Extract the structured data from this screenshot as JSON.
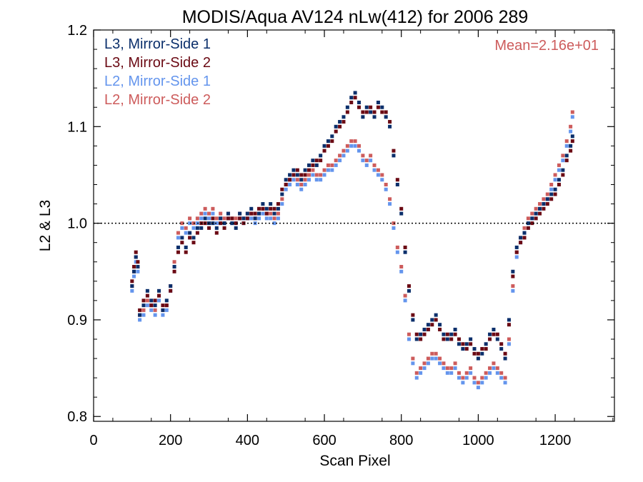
{
  "chart_data": {
    "type": "scatter",
    "title": "MODIS/Aqua AV124 nLw(412) for 2006 289",
    "xlabel": "Scan Pixel",
    "ylabel": "L2 & L3",
    "xlim": [
      0,
      1354
    ],
    "ylim": [
      0.795,
      1.2
    ],
    "x_ticks": [
      0,
      200,
      400,
      600,
      800,
      1000,
      1200
    ],
    "x_tick_labels": [
      "0",
      "200",
      "400",
      "600",
      "800",
      "1000",
      "1200"
    ],
    "y_ticks": [
      0.8,
      0.9,
      1.0,
      1.1,
      1.2
    ],
    "y_tick_labels": [
      "0.8",
      "0.9",
      "1.0",
      "1.1",
      "1.2"
    ],
    "reference_line": 1.0,
    "annotation": "Mean=2.16e+01",
    "annotation_color": "#cd5c5c",
    "legend_position": "top-left",
    "x_sample_points": [
      100,
      105,
      110,
      115,
      120,
      130,
      140,
      150,
      160,
      170,
      180,
      190,
      200,
      210,
      220,
      230,
      240,
      250,
      260,
      270,
      280,
      290,
      300,
      310,
      320,
      330,
      340,
      350,
      360,
      370,
      380,
      390,
      400,
      410,
      420,
      430,
      440,
      450,
      460,
      470,
      480,
      490,
      500,
      510,
      520,
      530,
      540,
      550,
      560,
      570,
      580,
      590,
      600,
      610,
      620,
      630,
      640,
      650,
      660,
      670,
      680,
      690,
      700,
      710,
      720,
      730,
      740,
      750,
      760,
      770,
      780,
      790,
      800,
      810,
      820,
      830,
      840,
      850,
      860,
      870,
      880,
      890,
      900,
      910,
      920,
      930,
      940,
      950,
      960,
      970,
      980,
      990,
      1000,
      1010,
      1020,
      1030,
      1040,
      1050,
      1060,
      1070,
      1080,
      1090,
      1100,
      1110,
      1120,
      1130,
      1140,
      1150,
      1160,
      1170,
      1180,
      1190,
      1200,
      1210,
      1220,
      1230,
      1240,
      1245
    ],
    "series": [
      {
        "name": "L3, Mirror-Side 1",
        "color": "#0b2f6b",
        "values": [
          0.935,
          0.95,
          0.965,
          0.955,
          0.905,
          0.915,
          0.93,
          0.92,
          0.915,
          0.93,
          0.91,
          0.92,
          0.935,
          0.955,
          0.975,
          0.985,
          0.975,
          0.99,
          0.985,
          0.995,
          0.995,
          1.005,
          1.0,
          1.0,
          0.995,
          1.005,
          1.0,
          1.01,
          1.0,
          0.995,
          1.01,
          1.005,
          1.01,
          1.015,
          1.005,
          1.01,
          1.02,
          1.015,
          1.02,
          1.01,
          1.015,
          1.03,
          1.045,
          1.05,
          1.055,
          1.05,
          1.045,
          1.055,
          1.06,
          1.065,
          1.06,
          1.07,
          1.08,
          1.085,
          1.09,
          1.1,
          1.105,
          1.11,
          1.12,
          1.13,
          1.135,
          1.125,
          1.11,
          1.12,
          1.115,
          1.11,
          1.125,
          1.12,
          1.11,
          1.1,
          1.07,
          1.04,
          1.01,
          0.97,
          0.93,
          0.9,
          0.88,
          0.885,
          0.89,
          0.895,
          0.9,
          0.905,
          0.895,
          0.885,
          0.88,
          0.885,
          0.89,
          0.875,
          0.87,
          0.875,
          0.88,
          0.87,
          0.86,
          0.865,
          0.875,
          0.885,
          0.89,
          0.88,
          0.87,
          0.86,
          0.9,
          0.95,
          0.975,
          0.985,
          0.99,
          1.0,
          1.005,
          1.01,
          1.015,
          1.02,
          1.025,
          1.03,
          1.035,
          1.045,
          1.055,
          1.07,
          1.08,
          1.09
        ]
      },
      {
        "name": "L3, Mirror-Side 2",
        "color": "#6b0a14",
        "values": [
          0.94,
          0.955,
          0.97,
          0.96,
          0.91,
          0.92,
          0.925,
          0.915,
          0.92,
          0.925,
          0.915,
          0.915,
          0.93,
          0.95,
          0.97,
          0.98,
          0.97,
          0.985,
          0.98,
          0.99,
          1.0,
          1.0,
          0.995,
          1.005,
          0.99,
          1.0,
          0.995,
          1.005,
          1.005,
          1.0,
          1.005,
          1.0,
          1.005,
          1.01,
          1.01,
          1.015,
          1.015,
          1.01,
          1.015,
          1.015,
          1.02,
          1.035,
          1.04,
          1.045,
          1.05,
          1.055,
          1.05,
          1.05,
          1.055,
          1.06,
          1.065,
          1.065,
          1.075,
          1.08,
          1.085,
          1.095,
          1.1,
          1.105,
          1.115,
          1.125,
          1.13,
          1.12,
          1.115,
          1.115,
          1.12,
          1.115,
          1.12,
          1.115,
          1.115,
          1.105,
          1.075,
          1.045,
          1.015,
          0.975,
          0.935,
          0.905,
          0.885,
          0.88,
          0.885,
          0.89,
          0.895,
          0.9,
          0.89,
          0.88,
          0.885,
          0.88,
          0.885,
          0.88,
          0.875,
          0.87,
          0.875,
          0.865,
          0.865,
          0.87,
          0.87,
          0.88,
          0.885,
          0.885,
          0.875,
          0.865,
          0.895,
          0.945,
          0.97,
          0.98,
          0.985,
          0.995,
          1.0,
          1.005,
          1.01,
          1.015,
          1.02,
          1.025,
          1.03,
          1.04,
          1.05,
          1.065,
          1.075,
          1.085
        ]
      },
      {
        "name": "L2, Mirror-Side 1",
        "color": "#6495ed",
        "values": [
          0.93,
          0.945,
          0.96,
          0.95,
          0.9,
          0.905,
          0.915,
          0.91,
          0.905,
          0.92,
          0.905,
          0.91,
          0.93,
          0.955,
          0.985,
          0.995,
          0.99,
          1.0,
          0.995,
          1.0,
          1.005,
          1.01,
          1.005,
          1.01,
          1.0,
          1.005,
          1.0,
          1.005,
          1.0,
          1.0,
          1.005,
          1.0,
          1.005,
          1.005,
          1.0,
          1.005,
          1.01,
          1.005,
          1.005,
          1.0,
          1.005,
          1.02,
          1.035,
          1.04,
          1.045,
          1.04,
          1.035,
          1.04,
          1.045,
          1.05,
          1.045,
          1.045,
          1.05,
          1.055,
          1.055,
          1.06,
          1.065,
          1.07,
          1.075,
          1.08,
          1.08,
          1.075,
          1.065,
          1.06,
          1.065,
          1.055,
          1.05,
          1.045,
          1.035,
          1.02,
          0.995,
          0.97,
          0.95,
          0.92,
          0.88,
          0.855,
          0.84,
          0.845,
          0.85,
          0.855,
          0.86,
          0.86,
          0.855,
          0.85,
          0.845,
          0.845,
          0.85,
          0.84,
          0.835,
          0.84,
          0.845,
          0.835,
          0.83,
          0.835,
          0.84,
          0.845,
          0.85,
          0.845,
          0.84,
          0.835,
          0.875,
          0.93,
          0.965,
          0.98,
          0.99,
          1.0,
          1.005,
          1.01,
          1.015,
          1.02,
          1.025,
          1.035,
          1.045,
          1.055,
          1.065,
          1.08,
          1.095,
          1.11
        ]
      },
      {
        "name": "L2, Mirror-Side 2",
        "color": "#cd5c5c",
        "values": [
          0.935,
          0.95,
          0.965,
          0.955,
          0.905,
          0.91,
          0.92,
          0.915,
          0.91,
          0.925,
          0.91,
          0.915,
          0.935,
          0.96,
          0.99,
          1.0,
          0.995,
          1.005,
          1.0,
          1.005,
          1.01,
          1.015,
          1.01,
          1.015,
          1.005,
          1.01,
          1.005,
          1.01,
          1.005,
          1.005,
          1.01,
          1.005,
          1.01,
          1.01,
          1.005,
          1.01,
          1.015,
          1.01,
          1.01,
          1.005,
          1.01,
          1.025,
          1.04,
          1.045,
          1.05,
          1.045,
          1.04,
          1.045,
          1.05,
          1.055,
          1.05,
          1.05,
          1.055,
          1.06,
          1.06,
          1.065,
          1.07,
          1.075,
          1.08,
          1.085,
          1.085,
          1.08,
          1.07,
          1.065,
          1.07,
          1.06,
          1.055,
          1.05,
          1.04,
          1.025,
          1.0,
          0.975,
          0.955,
          0.925,
          0.885,
          0.86,
          0.845,
          0.85,
          0.855,
          0.86,
          0.865,
          0.865,
          0.86,
          0.855,
          0.85,
          0.85,
          0.855,
          0.845,
          0.84,
          0.845,
          0.85,
          0.84,
          0.835,
          0.84,
          0.845,
          0.85,
          0.855,
          0.85,
          0.845,
          0.84,
          0.88,
          0.935,
          0.97,
          0.985,
          0.995,
          1.005,
          1.01,
          1.015,
          1.02,
          1.025,
          1.03,
          1.04,
          1.05,
          1.06,
          1.07,
          1.085,
          1.1,
          1.115
        ]
      }
    ]
  }
}
